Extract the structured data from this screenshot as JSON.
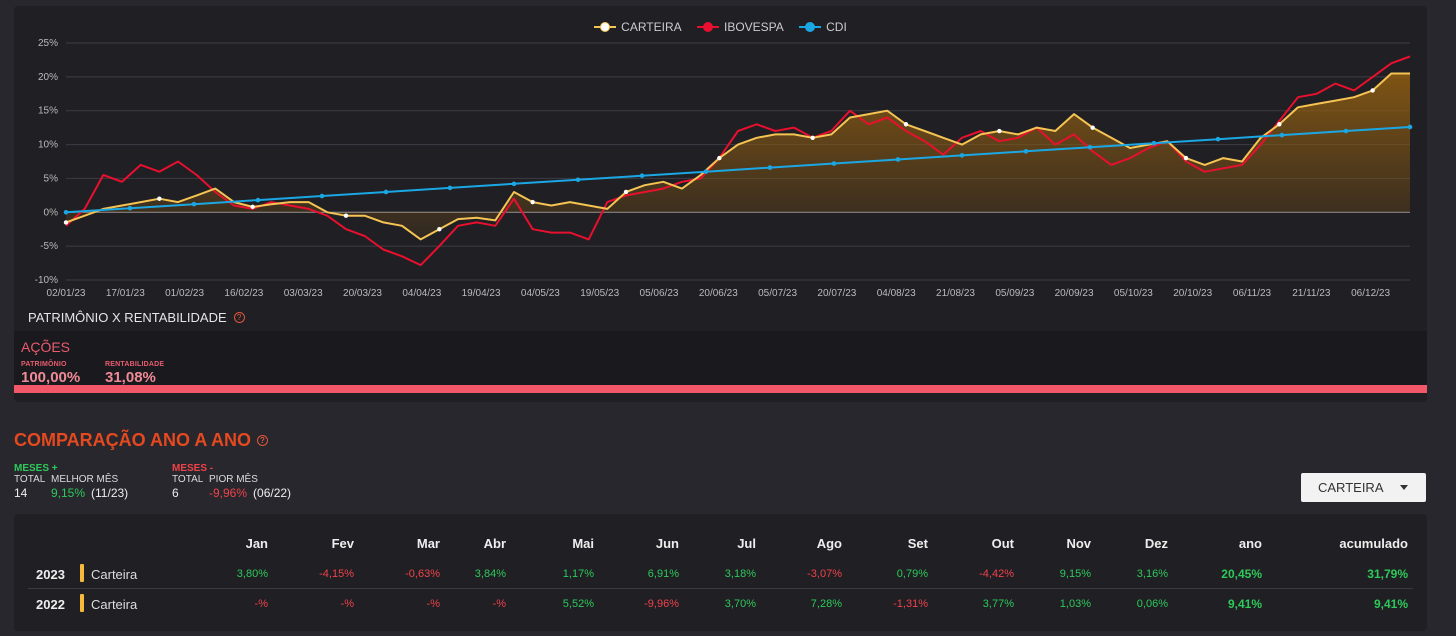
{
  "chart_data": {
    "type": "line",
    "title": "",
    "ylim": [
      -10,
      25
    ],
    "y_ticks": [
      "25%",
      "20%",
      "15%",
      "10%",
      "5%",
      "0%",
      "-5%",
      "-10%"
    ],
    "y_tick_values": [
      25,
      20,
      15,
      10,
      5,
      0,
      -5,
      -10
    ],
    "x_ticks": [
      "02/01/23",
      "17/01/23",
      "01/02/23",
      "16/02/23",
      "03/03/23",
      "20/03/23",
      "04/04/23",
      "19/04/23",
      "04/05/23",
      "19/05/23",
      "05/06/23",
      "20/06/23",
      "05/07/23",
      "20/07/23",
      "04/08/23",
      "21/08/23",
      "05/09/23",
      "20/09/23",
      "05/10/23",
      "20/10/23",
      "06/11/23",
      "21/11/23",
      "06/12/23"
    ],
    "grid": true,
    "legend": [
      "CARTEIRA",
      "IBOVESPA",
      "CDI"
    ],
    "colors": {
      "CARTEIRA": "#f5c453",
      "IBOVESPA": "#e8102e",
      "CDI": "#1ba7e3",
      "area": "#8a5a12"
    },
    "series": [
      {
        "name": "CARTEIRA",
        "values": [
          -1.5,
          -0.5,
          0.5,
          1.0,
          1.5,
          2.0,
          1.5,
          2.5,
          3.5,
          1.5,
          0.8,
          1.2,
          1.5,
          1.5,
          0.0,
          -0.5,
          -0.5,
          -1.5,
          -2.0,
          -4.0,
          -2.5,
          -1.0,
          -0.8,
          -1.2,
          3.0,
          1.5,
          1.0,
          1.5,
          1.0,
          0.5,
          3.0,
          4.0,
          4.5,
          3.5,
          5.5,
          8.0,
          10.0,
          11.0,
          11.5,
          11.5,
          11.0,
          11.5,
          14.0,
          14.5,
          15.0,
          13.0,
          12.0,
          11.0,
          10.0,
          11.5,
          12.0,
          11.5,
          12.5,
          12.0,
          14.5,
          12.5,
          11.0,
          9.5,
          10.0,
          10.5,
          8.0,
          7.0,
          8.0,
          7.5,
          11.0,
          13.0,
          15.5,
          16.0,
          16.5,
          17.0,
          18.0,
          20.5,
          20.5
        ]
      },
      {
        "name": "IBOVESPA",
        "values": [
          -2.0,
          0.5,
          5.5,
          4.5,
          7.0,
          6.0,
          7.5,
          5.5,
          3.0,
          1.0,
          0.5,
          1.5,
          1.0,
          0.5,
          -0.5,
          -2.5,
          -3.5,
          -5.5,
          -6.5,
          -7.8,
          -5.0,
          -2.0,
          -1.5,
          -2.0,
          2.0,
          -2.5,
          -3.0,
          -3.0,
          -4.0,
          1.5,
          2.5,
          3.0,
          3.5,
          4.5,
          5.0,
          8.0,
          12.0,
          13.0,
          12.0,
          12.5,
          11.0,
          12.0,
          15.0,
          13.0,
          14.0,
          12.0,
          10.5,
          8.5,
          11.0,
          12.0,
          10.5,
          11.0,
          12.5,
          10.0,
          11.5,
          9.0,
          7.0,
          8.0,
          9.5,
          10.5,
          7.5,
          6.0,
          6.5,
          7.0,
          10.0,
          13.5,
          17.0,
          17.5,
          19.0,
          18.0,
          20.0,
          22.0,
          23.0
        ]
      },
      {
        "name": "CDI",
        "values": [
          0.0,
          0.6,
          1.2,
          1.8,
          2.4,
          3.0,
          3.6,
          4.2,
          4.8,
          5.4,
          6.0,
          6.6,
          7.2,
          7.8,
          8.4,
          9.0,
          9.6,
          10.2,
          10.8,
          11.4,
          12.0,
          12.6
        ]
      }
    ]
  },
  "section": {
    "title": "PATRIMÔNIO X RENTABILIDADE"
  },
  "acoes": {
    "title": "AÇÕES",
    "patrimonio_label": "PATRIMÔNIO",
    "patrimonio_value": "100,00%",
    "rentabilidade_label": "RENTABILIDADE",
    "rentabilidade_value": "31,08%",
    "bar_fill_percent": 100
  },
  "comparacao": {
    "title": "COMPARAÇÃO ANO A ANO",
    "meses_pos": {
      "header": "MESES +",
      "total_label": "TOTAL",
      "best_label": "MELHOR MÊS",
      "total": "14",
      "best_value": "9,15%",
      "best_month": "(11/23)"
    },
    "meses_neg": {
      "header": "MESES -",
      "total_label": "TOTAL",
      "worst_label": "PIOR MÊS",
      "total": "6",
      "worst_value": "-9,96%",
      "worst_month": "(06/22)"
    },
    "dropdown": {
      "selected": "CARTEIRA"
    }
  },
  "table": {
    "headers": [
      "Jan",
      "Fev",
      "Mar",
      "Abr",
      "Mai",
      "Jun",
      "Jul",
      "Ago",
      "Set",
      "Out",
      "Nov",
      "Dez",
      "ano",
      "acumulado"
    ],
    "rows": [
      {
        "year": "2023",
        "name": "Carteira",
        "values": [
          "3,80%",
          "-4,15%",
          "-0,63%",
          "3,84%",
          "1,17%",
          "6,91%",
          "3,18%",
          "-3,07%",
          "0,79%",
          "-4,42%",
          "9,15%",
          "3,16%",
          "20,45%",
          "31,79%"
        ]
      },
      {
        "year": "2022",
        "name": "Carteira",
        "values": [
          "-%",
          "-%",
          "-%",
          "-%",
          "5,52%",
          "-9,96%",
          "3,70%",
          "7,28%",
          "-1,31%",
          "3,77%",
          "1,03%",
          "0,06%",
          "9,41%",
          "9,41%"
        ]
      }
    ],
    "colors": {
      "positive": "#2ec95a",
      "negative": "#f0424a"
    }
  }
}
